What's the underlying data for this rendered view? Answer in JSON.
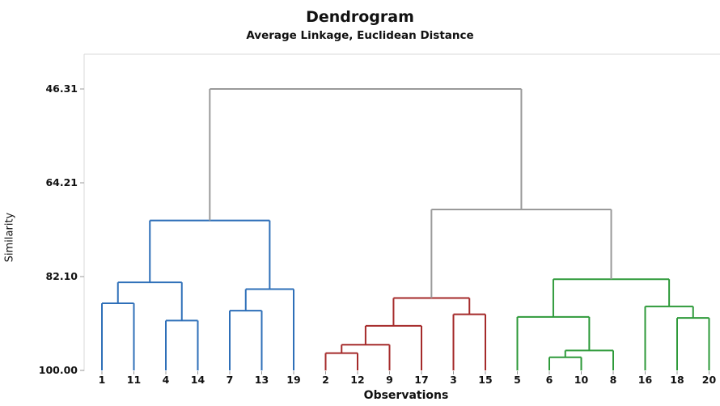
{
  "chart_data": {
    "type": "dendrogram",
    "title": "Dendrogram",
    "subtitle": "Average Linkage, Euclidean Distance",
    "xlabel": "Observations",
    "ylabel": "Similarity",
    "y_axis": {
      "ticks": [
        46.31,
        64.21,
        82.1,
        100.0
      ],
      "tick_labels": [
        "46.31",
        "64.21",
        "82.10",
        "100.00"
      ],
      "range": [
        100.0,
        46.31
      ],
      "inverted": true
    },
    "leaf_order": [
      "1",
      "11",
      "4",
      "14",
      "7",
      "13",
      "19",
      "2",
      "12",
      "9",
      "17",
      "3",
      "15",
      "5",
      "6",
      "10",
      "8",
      "16",
      "18",
      "20"
    ],
    "clusters": [
      {
        "id": "blue",
        "color": "#2e6fb8",
        "leaves": [
          "1",
          "11",
          "4",
          "14",
          "7",
          "13",
          "19"
        ]
      },
      {
        "id": "red",
        "color": "#a52a2a",
        "leaves": [
          "2",
          "12",
          "9",
          "17",
          "3",
          "15"
        ]
      },
      {
        "id": "green",
        "color": "#2e9a3a",
        "leaves": [
          "5",
          "6",
          "10",
          "8",
          "16",
          "18",
          "20"
        ]
      }
    ],
    "above_cut_color": "#9a9a9a",
    "merges": [
      {
        "id": "b1",
        "left": "1",
        "right": "11",
        "similarity": 87.2,
        "cluster": "blue"
      },
      {
        "id": "b2",
        "left": "4",
        "right": "14",
        "similarity": 90.5,
        "cluster": "blue"
      },
      {
        "id": "b3",
        "left": "b1",
        "right": "b2",
        "similarity": 83.2,
        "cluster": "blue"
      },
      {
        "id": "b4",
        "left": "7",
        "right": "13",
        "similarity": 88.6,
        "cluster": "blue"
      },
      {
        "id": "b5",
        "left": "b4",
        "right": "19",
        "similarity": 84.5,
        "cluster": "blue"
      },
      {
        "id": "b6",
        "left": "b3",
        "right": "b5",
        "similarity": 71.4,
        "cluster": "blue"
      },
      {
        "id": "r1",
        "left": "2",
        "right": "12",
        "similarity": 96.7,
        "cluster": "red"
      },
      {
        "id": "r2",
        "left": "r1",
        "right": "9",
        "similarity": 95.1,
        "cluster": "red"
      },
      {
        "id": "r3",
        "left": "r2",
        "right": "17",
        "similarity": 91.5,
        "cluster": "red"
      },
      {
        "id": "r4",
        "left": "3",
        "right": "15",
        "similarity": 89.3,
        "cluster": "red"
      },
      {
        "id": "r5",
        "left": "r3",
        "right": "r4",
        "similarity": 86.2,
        "cluster": "red"
      },
      {
        "id": "g1",
        "left": "6",
        "right": "10",
        "similarity": 97.5,
        "cluster": "green"
      },
      {
        "id": "g2",
        "left": "g1",
        "right": "8",
        "similarity": 96.2,
        "cluster": "green"
      },
      {
        "id": "g3",
        "left": "5",
        "right": "g2",
        "similarity": 89.8,
        "cluster": "green"
      },
      {
        "id": "g4",
        "left": "18",
        "right": "20",
        "similarity": 90.0,
        "cluster": "green"
      },
      {
        "id": "g5",
        "left": "16",
        "right": "g4",
        "similarity": 87.8,
        "cluster": "green"
      },
      {
        "id": "g6",
        "left": "g3",
        "right": "g5",
        "similarity": 82.6,
        "cluster": "green"
      },
      {
        "id": "m1",
        "left": "r5",
        "right": "g6",
        "similarity": 69.3,
        "cluster": "above"
      },
      {
        "id": "m2",
        "left": "b6",
        "right": "m1",
        "similarity": 46.31,
        "cluster": "above"
      }
    ]
  }
}
